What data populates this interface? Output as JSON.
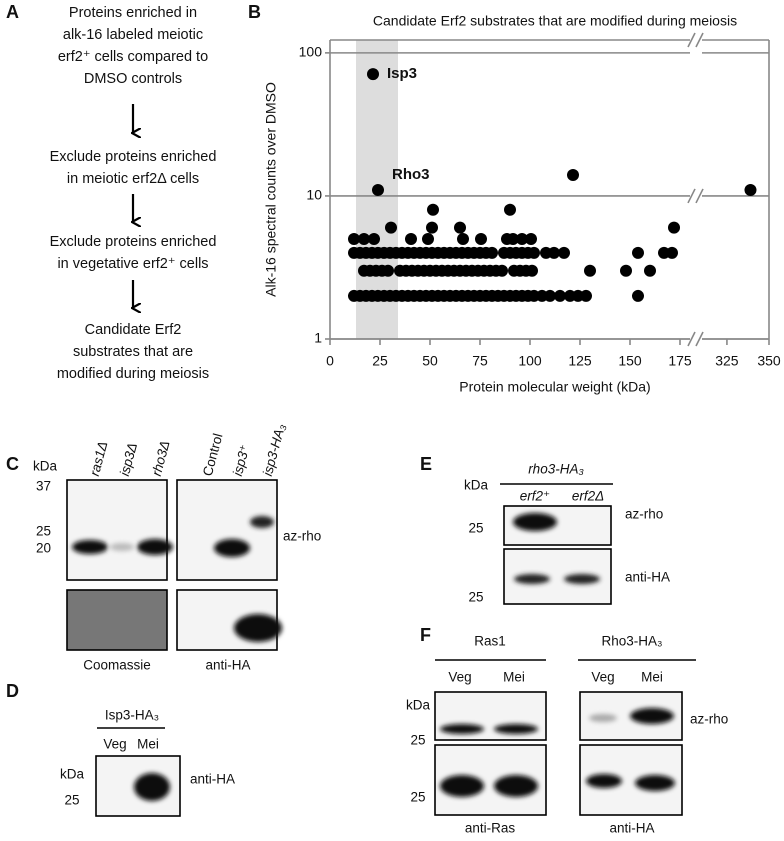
{
  "panel_labels": [
    "A",
    "B",
    "C",
    "D",
    "E",
    "F"
  ],
  "panel_a": {
    "steps": [
      {
        "lines": [
          "Proteins enriched in",
          "alk-16 labeled meiotic",
          "erf2⁺ cells compared to",
          "DMSO controls"
        ]
      },
      {
        "lines": [
          "Exclude proteins enriched",
          "in meiotic erf2Δ cells"
        ]
      },
      {
        "lines": [
          "Exclude proteins enriched",
          "in vegetative erf2⁺ cells"
        ]
      },
      {
        "lines": [
          "Candidate Erf2",
          "substrates that are",
          "modified during meiosis"
        ]
      }
    ]
  },
  "chart_data": {
    "type": "scatter",
    "title": "Candidate Erf2 substrates that are modified during meiosis",
    "x_label": "Protein molecular weight (kDa)",
    "y_label": "Alk-16 spectral counts over DMSO",
    "color": "#000000",
    "highlight_xrange": [
      13,
      34
    ],
    "highlight_color": "#dddddd",
    "xlim": [
      0,
      350
    ],
    "x_break": [
      181,
      309
    ],
    "xticks": [
      0,
      25,
      50,
      75,
      100,
      125,
      150,
      175,
      325,
      350
    ],
    "ylim": [
      1,
      123
    ],
    "yticks": [
      1,
      10,
      100
    ],
    "log_y": true,
    "grid": true,
    "annotations": [
      {
        "text": "Isp3",
        "x": 21.5,
        "y": 71
      },
      {
        "text": "Rho3",
        "x": 24,
        "y": 11
      }
    ],
    "x": [
      21.5,
      24,
      121.5,
      339,
      51.5,
      90,
      30.5,
      51,
      65,
      172,
      12,
      17,
      22,
      40.5,
      49,
      66.5,
      75.5,
      88.5,
      91.5,
      96,
      100.5,
      12,
      15,
      18,
      21,
      24,
      27,
      30,
      33,
      36,
      39,
      42,
      45,
      48,
      51,
      54,
      57,
      60,
      63,
      66,
      69,
      72,
      75,
      78,
      81,
      87,
      90,
      93,
      96,
      99,
      102,
      108,
      112,
      117,
      154,
      167,
      171,
      17,
      20,
      23,
      26,
      29,
      35,
      38,
      41,
      44,
      47,
      50,
      53,
      56,
      59,
      62,
      65,
      68,
      71,
      74,
      77,
      80,
      83,
      86,
      92,
      95,
      98,
      101,
      130,
      148,
      160,
      12,
      15,
      18,
      21,
      24,
      27,
      30,
      33,
      36,
      39,
      42,
      45,
      48,
      51,
      54,
      57,
      60,
      63,
      66,
      69,
      72,
      75,
      78,
      81,
      84,
      87,
      90,
      93,
      96,
      99,
      102,
      106,
      110,
      115,
      120,
      124,
      128,
      154
    ],
    "values": [
      71,
      11,
      14,
      11,
      8,
      8,
      6,
      6,
      6,
      6,
      5,
      5,
      5,
      5,
      5,
      5,
      5,
      5,
      5,
      5,
      5,
      4,
      4,
      4,
      4,
      4,
      4,
      4,
      4,
      4,
      4,
      4,
      4,
      4,
      4,
      4,
      4,
      4,
      4,
      4,
      4,
      4,
      4,
      4,
      4,
      4,
      4,
      4,
      4,
      4,
      4,
      4,
      4,
      4,
      4,
      4,
      4,
      3,
      3,
      3,
      3,
      3,
      3,
      3,
      3,
      3,
      3,
      3,
      3,
      3,
      3,
      3,
      3,
      3,
      3,
      3,
      3,
      3,
      3,
      3,
      3,
      3,
      3,
      3,
      3,
      3,
      3,
      2,
      2,
      2,
      2,
      2,
      2,
      2,
      2,
      2,
      2,
      2,
      2,
      2,
      2,
      2,
      2,
      2,
      2,
      2,
      2,
      2,
      2,
      2,
      2,
      2,
      2,
      2,
      2,
      2,
      2,
      2,
      2,
      2,
      2,
      2,
      2,
      2,
      2
    ]
  },
  "panel_c": {
    "kda": "kDa",
    "markers": [
      "37",
      "25",
      "20"
    ],
    "lanes_left": [
      "ras1Δ",
      "isp3Δ",
      "rho3Δ"
    ],
    "lanes_right": [
      "Control",
      "isp3⁺",
      "isp3-HA₃"
    ],
    "az_rho": "az-rho",
    "coomassie": "Coomassie",
    "anti_ha": "anti-HA"
  },
  "panel_d": {
    "construct": "Isp3-HA₃",
    "lanes": [
      "Veg",
      "Mei"
    ],
    "kda": "kDa",
    "marker": "25",
    "anti_ha": "anti-HA"
  },
  "panel_e": {
    "construct": "rho3-HA₃",
    "lanes": [
      "erf2⁺",
      "erf2Δ"
    ],
    "kda": "kDa",
    "markers": [
      "25",
      "25"
    ],
    "az_rho": "az-rho",
    "anti_ha": "anti-HA"
  },
  "panel_f": {
    "groups": [
      "Ras1",
      "Rho3-HA₃"
    ],
    "lanes": [
      "Veg",
      "Mei",
      "Veg",
      "Mei"
    ],
    "kda": "kDa",
    "markers": [
      "25",
      "25"
    ],
    "az_rho": "az-rho",
    "anti_ras": "anti-Ras",
    "anti_ha": "anti-HA"
  }
}
